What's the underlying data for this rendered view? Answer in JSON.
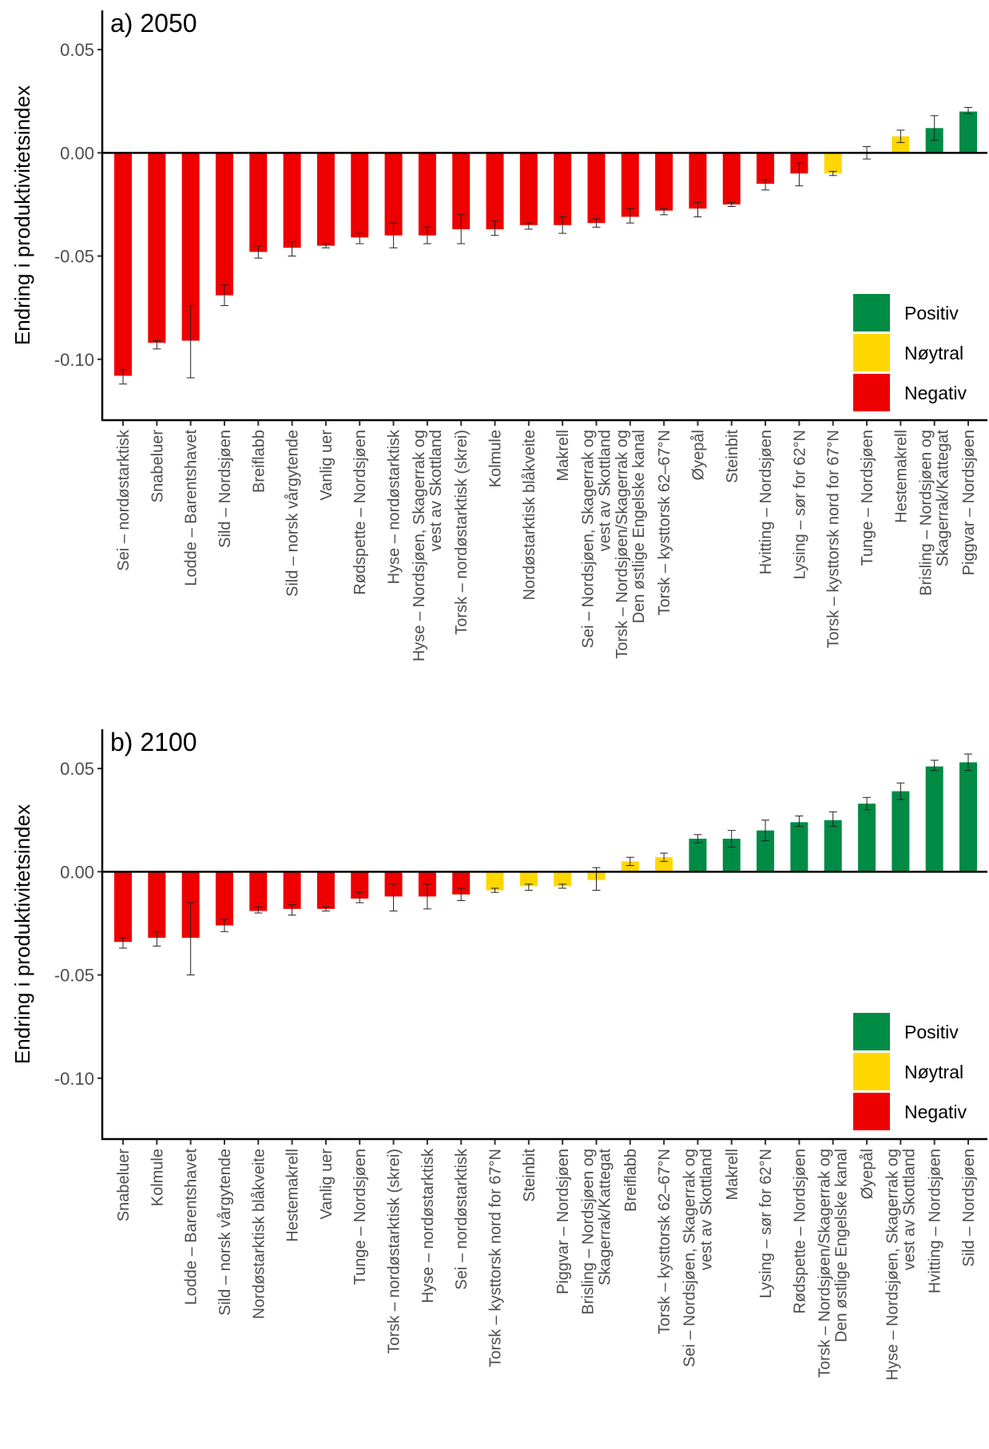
{
  "colors": {
    "Positiv": "#008B45",
    "Nøytral": "#FFD700",
    "Negativ": "#EE0000"
  },
  "legend": [
    "Positiv",
    "Nøytral",
    "Negativ"
  ],
  "chart_data": [
    {
      "type": "bar",
      "title": "a) 2050",
      "ylabel": "Endring i produktivitetsindex",
      "ylim": [
        -0.1295,
        0.069
      ],
      "yticks": [
        0.05,
        0.0,
        -0.05,
        -0.1
      ],
      "ytick_labels": [
        "0.05",
        "0.00",
        "-0.05",
        "-0.10"
      ],
      "legend_position": "bottom-right",
      "grid": false,
      "categories": [
        "Sei – nordøstarktisk",
        "Snabeluer",
        "Lodde – Barentshavet",
        "Sild – Nordsjøen",
        "Breiflabb",
        "Sild – norsk vårgytende",
        "Vanlig uer",
        "Rødspette – Nordsjøen",
        "Hyse – nordøstarktisk",
        "Hyse – Nordsjøen, Skagerrak og\nvest av Skottland",
        "Torsk – nordøstarktisk (skrei)",
        "Kolmule",
        "Nordøstarktisk blåkveite",
        "Makrell",
        "Sei – Nordsjøen, Skagerrak og\nvest av Skottland",
        "Torsk – Nordsjøen/Skagerrak og\nDen østlige Engelske kanal",
        "Torsk – kysttorsk 62–67°N",
        "Øyepål",
        "Steinbit",
        "Hvitting – Nordsjøen",
        "Lysing – sør for 62°N",
        "Torsk – kysttorsk nord for 67°N",
        "Tunge – Nordsjøen",
        "Hestemakrell",
        "Brisling – Nordsjøen og\nSkagerrak/Kattegat",
        "Piggvar – Nordsjøen"
      ],
      "values": [
        -0.108,
        -0.092,
        -0.091,
        -0.069,
        -0.048,
        -0.046,
        -0.045,
        -0.041,
        -0.04,
        -0.04,
        -0.037,
        -0.037,
        -0.035,
        -0.035,
        -0.034,
        -0.031,
        -0.028,
        -0.027,
        -0.025,
        -0.015,
        -0.01,
        -0.01,
        0.0005,
        0.008,
        0.012,
        0.02
      ],
      "err_high": [
        -0.105,
        -0.091,
        -0.074,
        -0.064,
        -0.045,
        -0.043,
        -0.044,
        -0.039,
        -0.034,
        -0.036,
        -0.03,
        -0.033,
        -0.034,
        -0.031,
        -0.032,
        -0.027,
        -0.027,
        -0.024,
        -0.024,
        -0.013,
        -0.005,
        -0.009,
        0.003,
        0.011,
        0.018,
        0.022
      ],
      "err_low": [
        -0.112,
        -0.095,
        -0.109,
        -0.074,
        -0.051,
        -0.05,
        -0.046,
        -0.044,
        -0.046,
        -0.044,
        -0.044,
        -0.04,
        -0.037,
        -0.039,
        -0.036,
        -0.034,
        -0.03,
        -0.031,
        -0.026,
        -0.018,
        -0.016,
        -0.011,
        -0.003,
        0.005,
        0.006,
        0.019
      ],
      "groups": [
        "Negativ",
        "Negativ",
        "Negativ",
        "Negativ",
        "Negativ",
        "Negativ",
        "Negativ",
        "Negativ",
        "Negativ",
        "Negativ",
        "Negativ",
        "Negativ",
        "Negativ",
        "Negativ",
        "Negativ",
        "Negativ",
        "Negativ",
        "Negativ",
        "Negativ",
        "Negativ",
        "Negativ",
        "Nøytral",
        "Nøytral",
        "Nøytral",
        "Positiv",
        "Positiv"
      ]
    },
    {
      "type": "bar",
      "title": "b) 2100",
      "ylabel": "Endring i produktivitetsindex",
      "ylim": [
        -0.1295,
        0.069
      ],
      "yticks": [
        0.05,
        0.0,
        -0.05,
        -0.1
      ],
      "ytick_labels": [
        "0.05",
        "0.00",
        "-0.05",
        "-0.10"
      ],
      "legend_position": "bottom-right",
      "grid": false,
      "categories": [
        "Snabeluer",
        "Kolmule",
        "Lodde – Barentshavet",
        "Sild – norsk vårgytende",
        "Nordøstarktisk blåkveite",
        "Hestemakrell",
        "Vanlig uer",
        "Tunge – Nordsjøen",
        "Torsk – nordøstarktisk (skrei)",
        "Hyse – nordøstarktisk",
        "Sei – nordøstarktisk",
        "Torsk – kysttorsk nord for 67°N",
        "Steinbit",
        "Piggvar – Nordsjøen",
        "Brisling – Nordsjøen og\nSkagerrak/Kattegat",
        "Breiflabb",
        "Torsk – kysttorsk 62–67°N",
        "Sei – Nordsjøen, Skagerrak og\nvest av Skottland",
        "Makrell",
        "Lysing – sør for 62°N",
        "Rødspette – Nordsjøen",
        "Torsk – Nordsjøen/Skagerrak og\nDen østlige Engelske kanal",
        "Øyepål",
        "Hyse – Nordsjøen, Skagerrak og\nvest av Skottland",
        "Hvitting – Nordsjøen",
        "Sild – Nordsjøen"
      ],
      "values": [
        -0.034,
        -0.032,
        -0.032,
        -0.026,
        -0.019,
        -0.018,
        -0.018,
        -0.013,
        -0.012,
        -0.012,
        -0.011,
        -0.009,
        -0.007,
        -0.007,
        -0.004,
        0.005,
        0.007,
        0.016,
        0.016,
        0.02,
        0.024,
        0.025,
        0.033,
        0.039,
        0.051,
        0.053
      ],
      "err_high": [
        -0.032,
        -0.029,
        -0.015,
        -0.023,
        -0.017,
        -0.016,
        -0.017,
        -0.01,
        -0.006,
        -0.006,
        -0.008,
        -0.008,
        -0.006,
        -0.006,
        0.002,
        0.007,
        0.009,
        0.018,
        0.02,
        0.025,
        0.027,
        0.029,
        0.036,
        0.043,
        0.054,
        0.057
      ],
      "err_low": [
        -0.037,
        -0.036,
        -0.05,
        -0.029,
        -0.02,
        -0.021,
        -0.019,
        -0.015,
        -0.019,
        -0.018,
        -0.014,
        -0.01,
        -0.009,
        -0.008,
        -0.009,
        0.003,
        0.005,
        0.014,
        0.012,
        0.015,
        0.022,
        0.022,
        0.03,
        0.035,
        0.049,
        0.049
      ],
      "groups": [
        "Negativ",
        "Negativ",
        "Negativ",
        "Negativ",
        "Negativ",
        "Negativ",
        "Negativ",
        "Negativ",
        "Negativ",
        "Negativ",
        "Negativ",
        "Nøytral",
        "Nøytral",
        "Nøytral",
        "Nøytral",
        "Nøytral",
        "Nøytral",
        "Positiv",
        "Positiv",
        "Positiv",
        "Positiv",
        "Positiv",
        "Positiv",
        "Positiv",
        "Positiv",
        "Positiv"
      ]
    }
  ]
}
